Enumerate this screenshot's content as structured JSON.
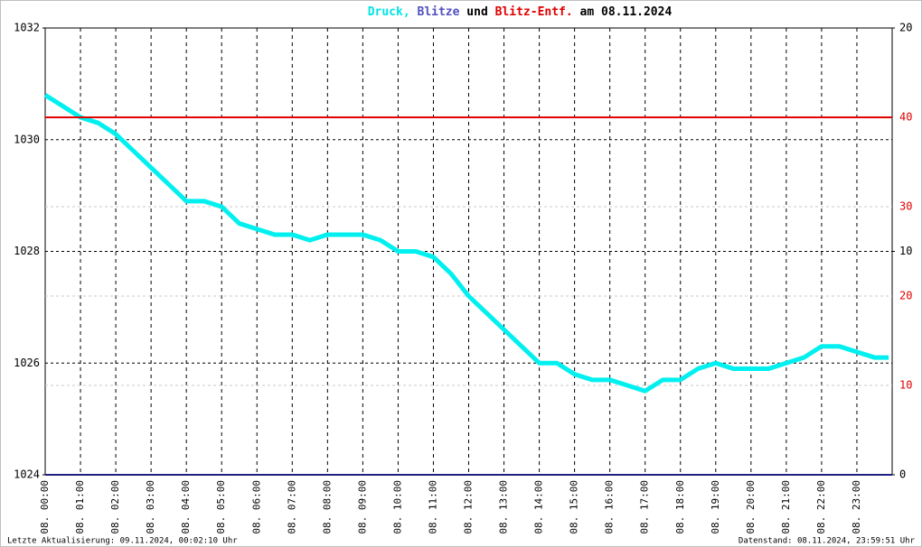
{
  "chart_data": {
    "type": "line",
    "title_parts": [
      {
        "text": "Druck,",
        "color": "#00e5e5"
      },
      {
        "text": "Blitze",
        "color": "#5050c0"
      },
      {
        "text": "und",
        "color": "#000000"
      },
      {
        "text": "Blitz-Entf.",
        "color": "#e00000"
      },
      {
        "text": "am 08.11.2024",
        "color": "#000000"
      }
    ],
    "footer_left": "Letzte Aktualisierung: 09.11.2024, 00:02:10 Uhr",
    "footer_right": "Datenstand: 08.11.2024, 23:59:51 Uhr",
    "xlim": [
      0,
      24
    ],
    "xticks": [
      {
        "value": 0,
        "label": "08. 00:00"
      },
      {
        "value": 1,
        "label": "08. 01:00"
      },
      {
        "value": 2,
        "label": "08. 02:00"
      },
      {
        "value": 3,
        "label": "08. 03:00"
      },
      {
        "value": 4,
        "label": "08. 04:00"
      },
      {
        "value": 5,
        "label": "08. 05:00"
      },
      {
        "value": 6,
        "label": "08. 06:00"
      },
      {
        "value": 7,
        "label": "08. 07:00"
      },
      {
        "value": 8,
        "label": "08. 08:00"
      },
      {
        "value": 9,
        "label": "08. 09:00"
      },
      {
        "value": 10,
        "label": "08. 10:00"
      },
      {
        "value": 11,
        "label": "08. 11:00"
      },
      {
        "value": 12,
        "label": "08. 12:00"
      },
      {
        "value": 13,
        "label": "08. 13:00"
      },
      {
        "value": 14,
        "label": "08. 14:00"
      },
      {
        "value": 15,
        "label": "08. 15:00"
      },
      {
        "value": 16,
        "label": "08. 16:00"
      },
      {
        "value": 17,
        "label": "08. 17:00"
      },
      {
        "value": 18,
        "label": "08. 18:00"
      },
      {
        "value": 19,
        "label": "08. 19:00"
      },
      {
        "value": 20,
        "label": "08. 20:00"
      },
      {
        "value": 21,
        "label": "08. 21:00"
      },
      {
        "value": 22,
        "label": "08. 22:00"
      },
      {
        "value": 23,
        "label": "08. 23:00"
      }
    ],
    "ylim": [
      1024,
      1032
    ],
    "yticks": [
      1024,
      1026,
      1028,
      1030,
      1032
    ],
    "y2lim": [
      0,
      50
    ],
    "y2ticks": [
      10,
      20,
      30,
      40
    ],
    "y2color": "#e00000",
    "y3lim": [
      0,
      20
    ],
    "y3ticks": [
      0,
      10,
      20
    ],
    "grid": true,
    "series": [
      {
        "color": "#00f0f0",
        "axis": "y",
        "x": [
          0,
          0.5,
          1,
          1.5,
          2,
          2.5,
          3,
          3.5,
          4,
          4.5,
          5,
          5.5,
          6,
          6.5,
          7,
          7.5,
          8,
          8.5,
          9,
          9.5,
          10,
          10.5,
          11,
          11.5,
          12,
          12.5,
          13,
          13.5,
          14,
          14.5,
          15,
          15.5,
          16,
          16.5,
          17,
          17.5,
          18,
          18.5,
          19,
          19.5,
          20,
          20.5,
          21,
          21.5,
          22,
          22.5,
          23,
          23.5,
          23.9
        ],
        "values": [
          1030.8,
          1030.6,
          1030.4,
          1030.3,
          1030.1,
          1029.8,
          1029.5,
          1029.2,
          1028.9,
          1028.9,
          1028.8,
          1028.5,
          1028.4,
          1028.3,
          1028.3,
          1028.2,
          1028.3,
          1028.3,
          1028.3,
          1028.2,
          1028.0,
          1028.0,
          1027.9,
          1027.6,
          1027.2,
          1026.9,
          1026.6,
          1026.3,
          1026.0,
          1026.0,
          1025.8,
          1025.7,
          1025.7,
          1025.6,
          1025.5,
          1025.7,
          1025.7,
          1025.9,
          1026.0,
          1025.9,
          1025.9,
          1025.9,
          1026.0,
          1026.1,
          1026.3,
          1026.3,
          1026.2,
          1026.1,
          1026.1
        ]
      },
      {
        "color": "#e00000",
        "axis": "y2",
        "x": [
          0,
          24
        ],
        "values": [
          40,
          40
        ]
      },
      {
        "color": "#202080",
        "axis": "y3",
        "x": [
          0,
          24
        ],
        "values": [
          0,
          0
        ]
      }
    ]
  }
}
